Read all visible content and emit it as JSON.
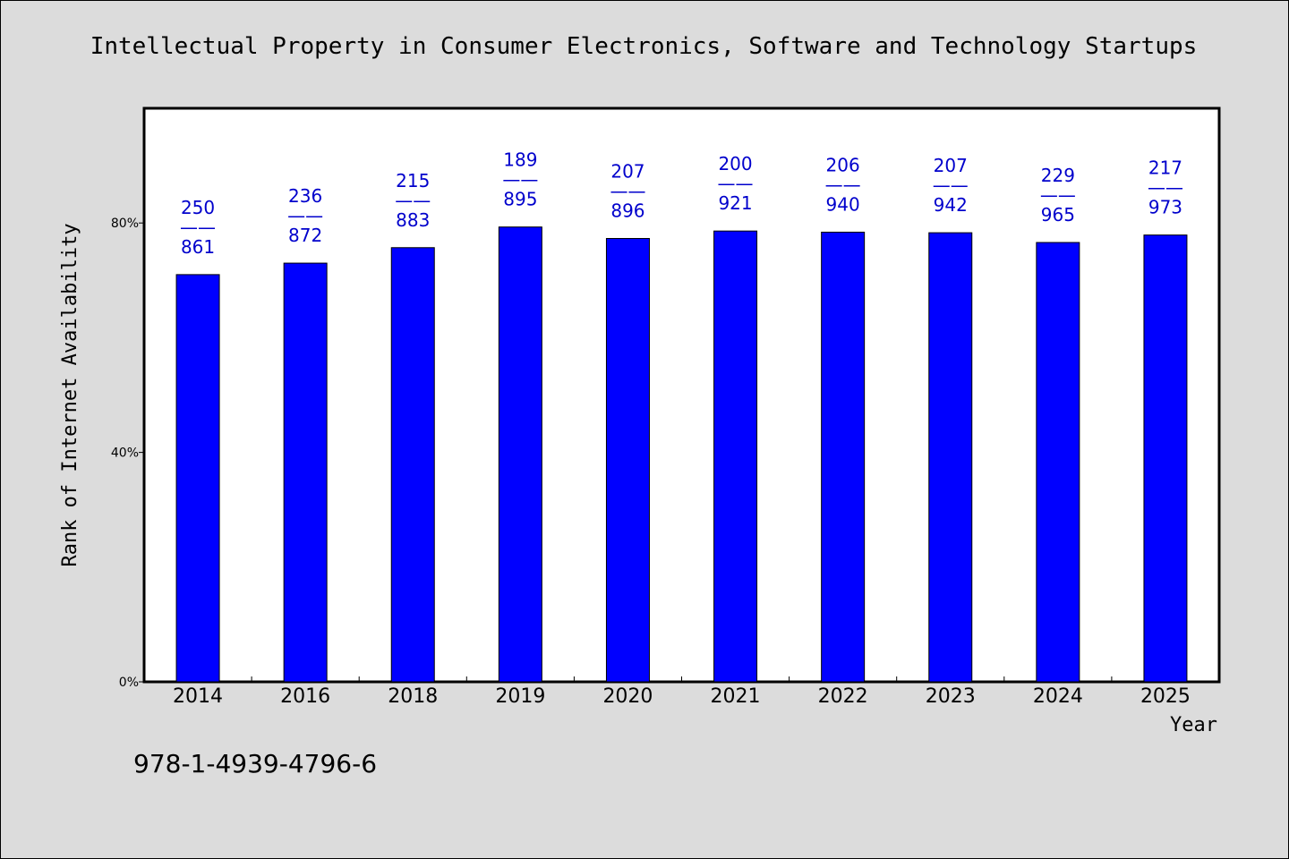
{
  "chart_data": {
    "type": "bar",
    "title": "Intellectual Property in Consumer Electronics, Software and Technology Startups",
    "xlabel": "Year",
    "ylabel": "Rank of Internet Availability",
    "categories": [
      "2014",
      "2016",
      "2018",
      "2019",
      "2020",
      "2021",
      "2022",
      "2023",
      "2024",
      "2025"
    ],
    "values": [
      71,
      73,
      75.7,
      79.3,
      77.3,
      78.6,
      78.4,
      78.3,
      76.6,
      77.9
    ],
    "ylim": [
      0,
      100
    ],
    "yticks": [
      0,
      40,
      80
    ],
    "ytick_labels": [
      "0%",
      "40%",
      "80%"
    ],
    "label_top": [
      "250",
      "236",
      "215",
      "189",
      "207",
      "200",
      "206",
      "207",
      "229",
      "217"
    ],
    "label_bottom": [
      "861",
      "872",
      "883",
      "895",
      "896",
      "921",
      "940",
      "942",
      "965",
      "973"
    ],
    "label_separator": "——",
    "bar_color": "#0000ff",
    "label_color": "#0000cc",
    "grid": false,
    "legend": "none"
  },
  "footer": {
    "isbn": "978-1-4939-4796-6"
  }
}
